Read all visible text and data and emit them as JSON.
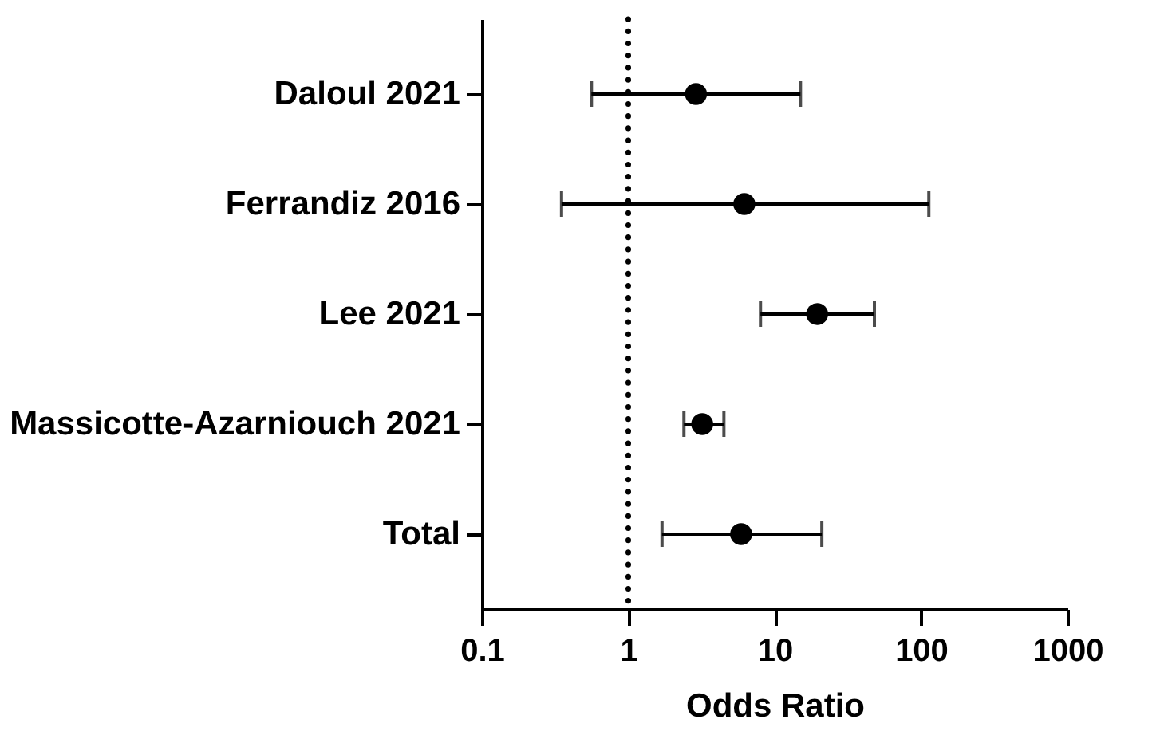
{
  "chart_data": {
    "type": "scatter",
    "orientation": "horizontal",
    "categories": [
      "Daloul 2021",
      "Ferrandiz 2016",
      "Lee 2021",
      "Massicotte-Azarniouch 2021",
      "Total"
    ],
    "values": [
      2.9,
      6.2,
      19.5,
      3.2,
      5.9
    ],
    "errors": [
      [
        0.56,
        15
      ],
      [
        0.35,
        113
      ],
      [
        8.0,
        48
      ],
      [
        2.4,
        4.5
      ],
      [
        1.7,
        21
      ]
    ],
    "color": "#000000",
    "marker": "circle",
    "xlabel": "Odds Ratio",
    "log": "x",
    "xlim": [
      0.1,
      1000
    ],
    "xticks": [
      0.1,
      1,
      10,
      100,
      1000
    ],
    "ref_lines": [
      {
        "axis": "x",
        "value": 1,
        "line_style": "dotted",
        "color": "#000000"
      }
    ],
    "grid": false
  }
}
